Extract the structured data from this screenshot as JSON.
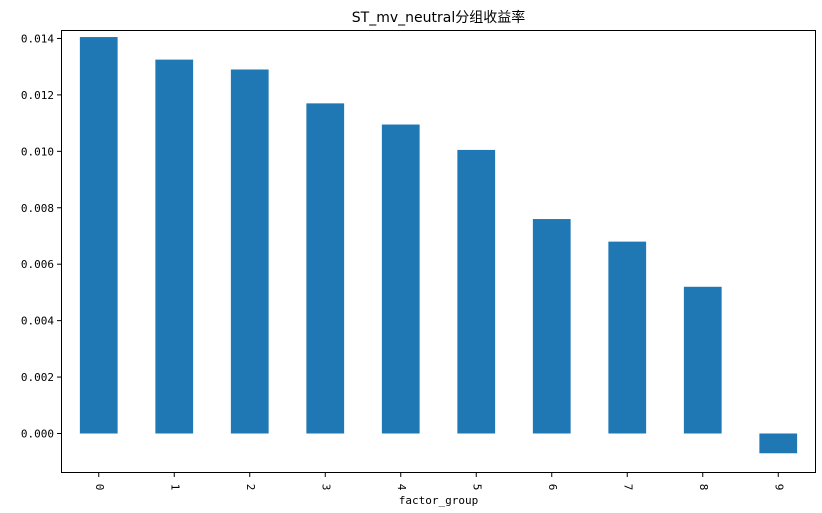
{
  "chart_data": {
    "type": "bar",
    "title": "ST_mv_neutral分组收益率",
    "xlabel": "factor_group",
    "ylabel": "",
    "categories": [
      "0",
      "1",
      "2",
      "3",
      "4",
      "5",
      "6",
      "7",
      "8",
      "9"
    ],
    "values": [
      0.01405,
      0.01325,
      0.0129,
      0.0117,
      0.01095,
      0.01005,
      0.0076,
      0.0068,
      0.0052,
      -0.0007
    ],
    "ylim": [
      -0.0014,
      0.0143
    ],
    "yticks": [
      0.0,
      0.002,
      0.004,
      0.006,
      0.008,
      0.01,
      0.012,
      0.014
    ],
    "ytick_labels": [
      "0.000",
      "0.002",
      "0.004",
      "0.006",
      "0.008",
      "0.010",
      "0.012",
      "0.014"
    ],
    "bar_color": "#1f77b4",
    "grid": false,
    "legend": "none",
    "x_tick_rotation": "vertical"
  }
}
